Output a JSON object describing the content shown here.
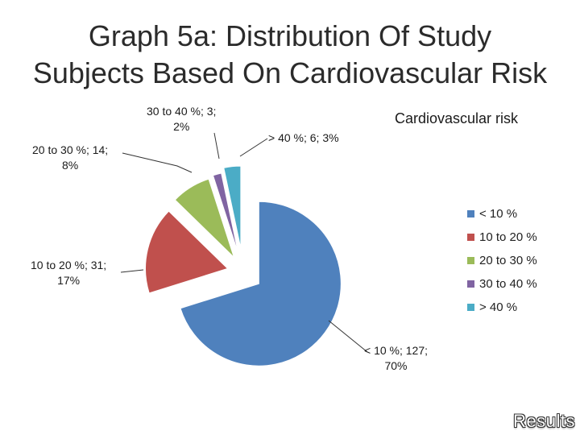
{
  "slide": {
    "title_line1": "Graph 5a: Distribution Of Study",
    "title_line2": "Subjects Based On Cardiovascular Risk",
    "footer": "Results"
  },
  "chart_data": {
    "type": "pie",
    "title": "Cardiovascular risk",
    "legend_position": "right",
    "categories": [
      "< 10 %",
      "10 to 20 %",
      "20 to 30 %",
      "30 to 40 %",
      "> 40 %"
    ],
    "values": [
      127,
      31,
      14,
      3,
      6
    ],
    "percents": [
      "70%",
      "17%",
      "8%",
      "2%",
      "3%"
    ],
    "colors": [
      "#4f81bd",
      "#c0504d",
      "#9bbb59",
      "#8064a2",
      "#4bacc6"
    ],
    "data_labels": [
      {
        "line1": "< 10 %; 127;",
        "line2": "70%"
      },
      {
        "line1": "10 to 20 %; 31;",
        "line2": "17%"
      },
      {
        "line1": "20 to 30 %; 14;",
        "line2": "8%"
      },
      {
        "line1": "30 to 40 %; 3;",
        "line2": "2%"
      },
      {
        "line1": "> 40 %; 6; 3%",
        "line2": ""
      }
    ]
  }
}
